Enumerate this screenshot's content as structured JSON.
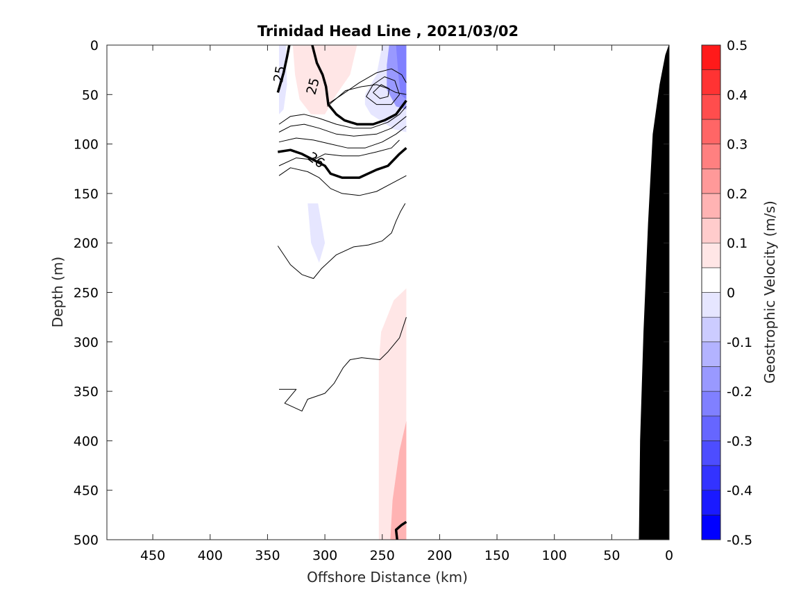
{
  "chart_data": {
    "type": "contour",
    "title": "Trinidad Head Line , 2021/03/02",
    "xlabel": "Offshore Distance (km)",
    "ylabel": "Depth (m)",
    "xlim": [
      490,
      0
    ],
    "ylim": [
      500,
      0
    ],
    "x_reversed": true,
    "y_reversed": true,
    "xticks": [
      450,
      400,
      350,
      300,
      250,
      200,
      150,
      100,
      50,
      0
    ],
    "yticks": [
      0,
      50,
      100,
      150,
      200,
      250,
      300,
      350,
      400,
      450,
      500
    ],
    "colorbar": {
      "label": "Geostrophic Velocity (m/s)",
      "range": [
        -0.5,
        0.5
      ],
      "ticks": [
        0.5,
        0.4,
        0.3,
        0.2,
        0.1,
        0,
        -0.1,
        -0.2,
        -0.3,
        -0.4,
        -0.5
      ],
      "levels": [
        -0.5,
        -0.45,
        -0.4,
        -0.35,
        -0.3,
        -0.25,
        -0.2,
        -0.15,
        -0.1,
        -0.05,
        0,
        0.05,
        0.1,
        0.15,
        0.2,
        0.25,
        0.3,
        0.35,
        0.4,
        0.45,
        0.5
      ],
      "colors": [
        "#0000ff",
        "#1a1aff",
        "#3333ff",
        "#4d4dff",
        "#6666ff",
        "#8080ff",
        "#9999ff",
        "#b3b3ff",
        "#ccccff",
        "#e6e6ff",
        "#ffffff",
        "#ffffff",
        "#ffe6e6",
        "#ffcccc",
        "#ffb3b3",
        "#ff9999",
        "#ff8080",
        "#ff6666",
        "#ff4d4d",
        "#ff3333",
        "#ff1a1a",
        "#ff0000"
      ]
    },
    "velocity_patches": [
      {
        "level": -0.1,
        "points": [
          [
            340,
            0
          ],
          [
            334,
            0
          ],
          [
            333,
            40
          ],
          [
            336,
            65
          ],
          [
            340,
            70
          ]
        ]
      },
      {
        "level": 0.1,
        "points": [
          [
            328,
            0
          ],
          [
            272,
            0
          ],
          [
            278,
            30
          ],
          [
            290,
            50
          ],
          [
            300,
            70
          ],
          [
            312,
            70
          ],
          [
            322,
            55
          ],
          [
            326,
            30
          ]
        ]
      },
      {
        "level": -0.1,
        "points": [
          [
            250,
            0
          ],
          [
            229,
            0
          ],
          [
            229,
            88
          ],
          [
            240,
            85
          ],
          [
            260,
            70
          ],
          [
            265,
            60
          ],
          [
            265,
            50
          ],
          [
            255,
            30
          ]
        ]
      },
      {
        "level": -0.2,
        "points": [
          [
            244,
            0
          ],
          [
            229,
            0
          ],
          [
            229,
            65
          ],
          [
            238,
            62
          ],
          [
            246,
            45
          ],
          [
            246,
            20
          ]
        ]
      },
      {
        "level": -0.3,
        "points": [
          [
            238,
            0
          ],
          [
            229,
            0
          ],
          [
            229,
            55
          ],
          [
            234,
            50
          ],
          [
            236,
            30
          ]
        ]
      },
      {
        "level": -0.1,
        "points": [
          [
            315,
            160
          ],
          [
            306,
            160
          ],
          [
            300,
            200
          ],
          [
            305,
            220
          ],
          [
            312,
            200
          ]
        ]
      },
      {
        "level": 0.1,
        "points": [
          [
            253,
            500
          ],
          [
            229,
            500
          ],
          [
            229,
            246
          ],
          [
            240,
            258
          ],
          [
            251,
            290
          ],
          [
            253,
            320
          ]
        ]
      },
      {
        "level": 0.2,
        "points": [
          [
            243,
            500
          ],
          [
            229,
            500
          ],
          [
            229,
            380
          ],
          [
            235,
            410
          ],
          [
            241,
            460
          ]
        ]
      }
    ],
    "density_contours": [
      {
        "level": 25,
        "bold": true,
        "points": [
          [
            341,
            48
          ],
          [
            336,
            28
          ],
          [
            333,
            12
          ],
          [
            331,
            0
          ]
        ]
      },
      {
        "level": 25,
        "bold": true,
        "points": [
          [
            311,
            0
          ],
          [
            307,
            18
          ],
          [
            302,
            30
          ],
          [
            299,
            42
          ],
          [
            297,
            60
          ],
          [
            290,
            70
          ],
          [
            283,
            76
          ],
          [
            272,
            80
          ],
          [
            258,
            80
          ],
          [
            248,
            76
          ],
          [
            238,
            70
          ],
          [
            229,
            56
          ]
        ]
      },
      {
        "level": 26,
        "bold": true,
        "points": [
          [
            341,
            108
          ],
          [
            330,
            106
          ],
          [
            320,
            110
          ],
          [
            310,
            116
          ],
          [
            300,
            122
          ],
          [
            295,
            130
          ],
          [
            285,
            134
          ],
          [
            270,
            134
          ],
          [
            255,
            126
          ],
          [
            245,
            122
          ],
          [
            235,
            110
          ],
          [
            229,
            104
          ]
        ]
      },
      {
        "level": null,
        "bold": false,
        "points": [
          [
            340,
            80
          ],
          [
            330,
            72
          ],
          [
            318,
            70
          ],
          [
            305,
            74
          ],
          [
            290,
            80
          ],
          [
            275,
            84
          ],
          [
            260,
            84
          ],
          [
            245,
            78
          ],
          [
            235,
            70
          ],
          [
            229,
            62
          ]
        ]
      },
      {
        "level": null,
        "bold": false,
        "points": [
          [
            340,
            88
          ],
          [
            330,
            82
          ],
          [
            318,
            80
          ],
          [
            305,
            84
          ],
          [
            290,
            90
          ],
          [
            275,
            92
          ],
          [
            255,
            90
          ],
          [
            242,
            84
          ],
          [
            229,
            72
          ]
        ]
      },
      {
        "level": null,
        "bold": false,
        "points": [
          [
            340,
            98
          ],
          [
            325,
            94
          ],
          [
            310,
            96
          ],
          [
            295,
            100
          ],
          [
            280,
            104
          ],
          [
            265,
            104
          ],
          [
            250,
            98
          ],
          [
            238,
            90
          ],
          [
            229,
            82
          ]
        ]
      },
      {
        "level": null,
        "bold": false,
        "points": [
          [
            340,
            122
          ],
          [
            325,
            114
          ],
          [
            310,
            116
          ],
          [
            300,
            110
          ],
          [
            285,
            112
          ],
          [
            270,
            112
          ],
          [
            255,
            108
          ],
          [
            242,
            104
          ],
          [
            235,
            96
          ]
        ]
      },
      {
        "level": null,
        "bold": false,
        "points": [
          [
            340,
            132
          ],
          [
            330,
            124
          ],
          [
            315,
            128
          ],
          [
            305,
            134
          ],
          [
            295,
            145
          ],
          [
            285,
            150
          ],
          [
            270,
            152
          ],
          [
            255,
            148
          ],
          [
            242,
            140
          ],
          [
            229,
            132
          ]
        ]
      },
      {
        "level": null,
        "bold": false,
        "points": [
          [
            298,
            62
          ],
          [
            290,
            54
          ],
          [
            282,
            46
          ],
          [
            268,
            42
          ],
          [
            255,
            40
          ],
          [
            245,
            44
          ],
          [
            238,
            48
          ],
          [
            229,
            50
          ]
        ]
      },
      {
        "level": null,
        "bold": false,
        "points": [
          [
            298,
            60
          ],
          [
            285,
            50
          ],
          [
            270,
            38
          ],
          [
            255,
            28
          ],
          [
            242,
            24
          ],
          [
            233,
            30
          ],
          [
            229,
            38
          ]
        ]
      },
      {
        "level": null,
        "bold": false,
        "points": [
          [
            264,
            52
          ],
          [
            258,
            40
          ],
          [
            248,
            32
          ],
          [
            239,
            36
          ],
          [
            235,
            50
          ],
          [
            242,
            60
          ],
          [
            255,
            60
          ],
          [
            264,
            52
          ]
        ]
      },
      {
        "level": null,
        "bold": false,
        "points": [
          [
            258,
            48
          ],
          [
            251,
            40
          ],
          [
            244,
            44
          ],
          [
            245,
            52
          ],
          [
            252,
            54
          ],
          [
            258,
            48
          ]
        ]
      },
      {
        "level": null,
        "bold": false,
        "points": [
          [
            341,
            203
          ],
          [
            330,
            222
          ],
          [
            320,
            232
          ],
          [
            310,
            236
          ],
          [
            303,
            226
          ],
          [
            290,
            212
          ],
          [
            275,
            204
          ],
          [
            262,
            202
          ],
          [
            250,
            198
          ],
          [
            242,
            190
          ],
          [
            238,
            178
          ],
          [
            234,
            168
          ],
          [
            230,
            160
          ]
        ]
      },
      {
        "level": null,
        "bold": false,
        "points": [
          [
            340,
            348
          ],
          [
            325,
            348
          ],
          [
            335,
            362
          ],
          [
            320,
            370
          ],
          [
            315,
            358
          ],
          [
            300,
            352
          ],
          [
            292,
            342
          ],
          [
            284,
            326
          ],
          [
            278,
            318
          ],
          [
            268,
            316
          ],
          [
            252,
            318
          ],
          [
            245,
            310
          ],
          [
            235,
            296
          ],
          [
            229,
            275
          ]
        ]
      },
      {
        "level": null,
        "bold": true,
        "points": [
          [
            237,
            500
          ],
          [
            238,
            490
          ],
          [
            233,
            485
          ],
          [
            229,
            482
          ]
        ]
      }
    ],
    "contour_labels": [
      "25",
      "25",
      "26"
    ],
    "bathymetry": [
      [
        0,
        0
      ],
      [
        3,
        10
      ],
      [
        8,
        40
      ],
      [
        14,
        90
      ],
      [
        18,
        180
      ],
      [
        22,
        290
      ],
      [
        25,
        400
      ],
      [
        26,
        500
      ],
      [
        0,
        500
      ]
    ]
  }
}
